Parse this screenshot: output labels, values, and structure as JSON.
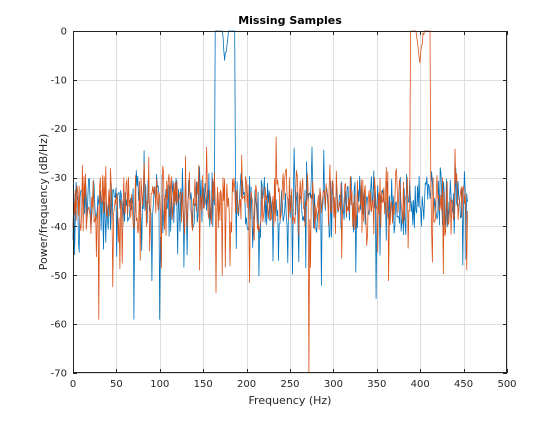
{
  "chart_data": {
    "type": "line",
    "title": "Missing Samples",
    "xlabel": "Frequency (Hz)",
    "ylabel": "Power/frequency (dB/Hz)",
    "xlim": [
      0,
      500
    ],
    "ylim": [
      -70,
      0
    ],
    "xticks": [
      0,
      50,
      100,
      150,
      200,
      250,
      300,
      350,
      400,
      450,
      500
    ],
    "yticks": [
      0,
      -10,
      -20,
      -30,
      -40,
      -50,
      -60,
      -70
    ],
    "grid": true,
    "legend": "none",
    "noise_floor_db": -35,
    "series": [
      {
        "color": "#0072BD",
        "peaks": [
          {
            "x": 175,
            "y": -6
          }
        ],
        "notable_points": [
          {
            "x": 100,
            "y": -59
          },
          {
            "x": 70,
            "y": -59
          },
          {
            "x": 160,
            "y": -29
          }
        ],
        "x_range": [
          0,
          455
        ]
      },
      {
        "color": "#D95319",
        "peaks": [
          {
            "x": 400,
            "y": -6.5
          }
        ],
        "notable_points": [
          {
            "x": 272,
            "y": -70
          },
          {
            "x": 30,
            "y": -59
          },
          {
            "x": 385,
            "y": -30
          }
        ],
        "x_range": [
          0,
          455
        ]
      }
    ]
  }
}
